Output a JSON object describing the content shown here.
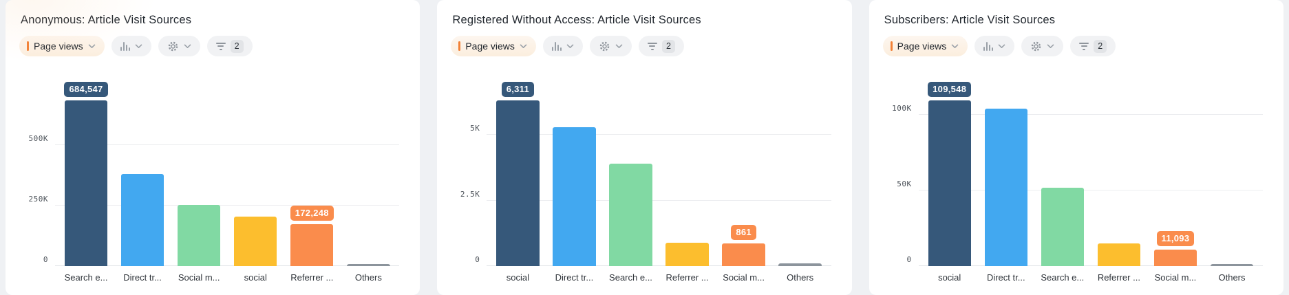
{
  "toolbar": {
    "metric_label": "Page views",
    "buttons": [
      {
        "name": "chart-type-dropdown",
        "icon": "bar-chart-icon",
        "has_chevron": true
      },
      {
        "name": "settings-dropdown",
        "icon": "gear-icon",
        "has_chevron": true
      },
      {
        "name": "filter-button",
        "icon": "filter-lines-icon",
        "badge_count": "2"
      }
    ]
  },
  "colors": {
    "navy": "#36587A",
    "blue": "#42A8F0",
    "green": "#81D9A3",
    "yellow": "#FCBE2E",
    "orange": "#FA8C4C",
    "gray": "#8C949C",
    "accent_orange": "#F28136"
  },
  "chart_data": [
    {
      "type": "bar",
      "title": "Anonymous: Article Visit Sources",
      "ylabel": "Page views",
      "ylim": [
        0,
        808000
      ],
      "grid": true,
      "yticks": [
        {
          "label": "0",
          "value": 0
        },
        {
          "label": "250K",
          "value": 250000
        },
        {
          "label": "500K",
          "value": 500000
        }
      ],
      "bars": [
        {
          "category": "Search e...",
          "value": 684547,
          "display": "684,547",
          "color": "navy",
          "show_label": true
        },
        {
          "category": "Direct tr...",
          "value": 380000,
          "color": "blue",
          "show_label": false
        },
        {
          "category": "Social m...",
          "value": 253000,
          "color": "green",
          "show_label": false
        },
        {
          "category": "social",
          "value": 205000,
          "color": "yellow",
          "show_label": false
        },
        {
          "category": "Referrer ...",
          "value": 172248,
          "display": "172,248",
          "color": "orange",
          "show_label": true
        },
        {
          "category": "Others",
          "value": 10000,
          "color": "gray",
          "show_label": false
        }
      ]
    },
    {
      "type": "bar",
      "title": "Registered Without Access: Article Visit Sources",
      "ylabel": "Page views",
      "ylim": [
        0,
        7450
      ],
      "grid": true,
      "yticks": [
        {
          "label": "0",
          "value": 0
        },
        {
          "label": "2.5K",
          "value": 2500
        },
        {
          "label": "5K",
          "value": 5000
        }
      ],
      "bars": [
        {
          "category": "social",
          "value": 6311,
          "display": "6,311",
          "color": "navy",
          "show_label": true
        },
        {
          "category": "Direct tr...",
          "value": 5300,
          "color": "blue",
          "show_label": false
        },
        {
          "category": "Search e...",
          "value": 3900,
          "color": "green",
          "show_label": false
        },
        {
          "category": "Referrer ...",
          "value": 880,
          "color": "yellow",
          "show_label": false
        },
        {
          "category": "Social m...",
          "value": 861,
          "display": "861",
          "color": "orange",
          "show_label": true
        },
        {
          "category": "Others",
          "value": 100,
          "color": "gray",
          "show_label": false
        }
      ]
    },
    {
      "type": "bar",
      "title": "Subscribers: Article Visit Sources",
      "ylabel": "Page views",
      "ylim": [
        0,
        129000
      ],
      "grid": true,
      "yticks": [
        {
          "label": "0",
          "value": 0
        },
        {
          "label": "50K",
          "value": 50000
        },
        {
          "label": "100K",
          "value": 100000
        }
      ],
      "bars": [
        {
          "category": "social",
          "value": 109548,
          "display": "109,548",
          "color": "navy",
          "show_label": true
        },
        {
          "category": "Direct tr...",
          "value": 104000,
          "color": "blue",
          "show_label": false
        },
        {
          "category": "Search e...",
          "value": 52000,
          "color": "green",
          "show_label": false
        },
        {
          "category": "Referrer ...",
          "value": 15000,
          "color": "yellow",
          "show_label": false
        },
        {
          "category": "Social m...",
          "value": 11093,
          "display": "11,093",
          "color": "orange",
          "show_label": true
        },
        {
          "category": "Others",
          "value": 1500,
          "color": "gray",
          "show_label": false
        }
      ]
    }
  ]
}
